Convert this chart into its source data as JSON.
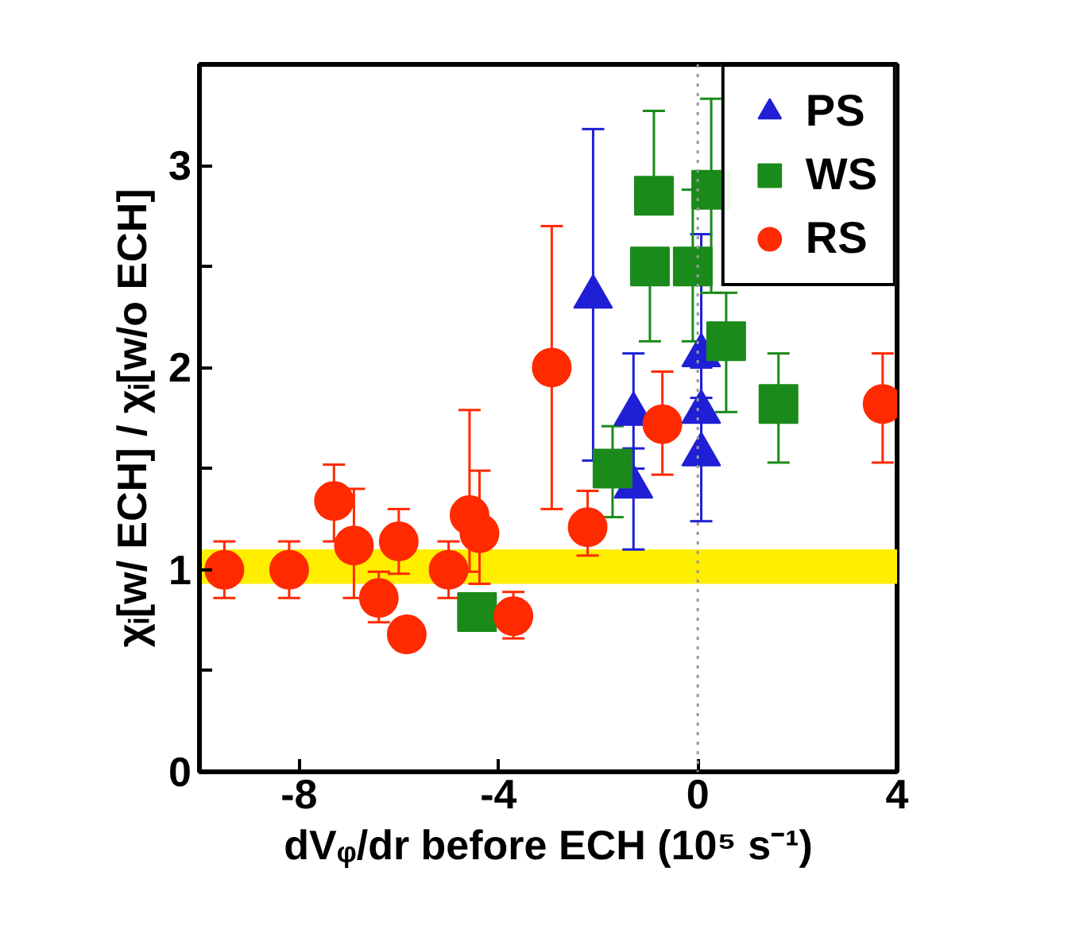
{
  "chart_data": {
    "type": "scatter",
    "xlabel": "dVᵩ/dr before ECH (10⁵ s⁻¹)",
    "ylabel": "χᵢ[w/ ECH] / χᵢ[w/o ECH]",
    "xlim": [
      -10,
      4
    ],
    "xticks": [
      -8,
      -4,
      0,
      4
    ],
    "ylim": [
      0,
      3.5
    ],
    "yticks": [
      0,
      {
        "value": 0.5,
        "label": null
      },
      1,
      {
        "value": 1.5,
        "label": null
      },
      2,
      {
        "value": 2.5,
        "label": null
      },
      3
    ],
    "grid": false,
    "legend": "top right",
    "series": [
      {
        "name": "PS",
        "color": "#1f1fd6",
        "marker": "triangle",
        "x": [
          -2.1,
          -1.29,
          -1.29,
          0.07,
          0.07,
          0.07
        ],
        "values": [
          2.35,
          1.77,
          1.41,
          2.06,
          1.78,
          1.57
        ],
        "errors": [
          [
            1.54,
            3.18
          ],
          [
            1.5,
            2.07
          ],
          [
            1.1,
            1.6
          ],
          [
            1.85,
            2.66
          ],
          [
            1.55,
            2.0
          ],
          [
            1.24,
            1.78
          ]
        ]
      },
      {
        "name": "WS",
        "color": "#1a8a1a",
        "marker": "square",
        "x": [
          -4.43,
          -1.71,
          -0.96,
          -0.1,
          -0.88,
          0.27,
          0.57,
          1.62
        ],
        "values": [
          0.79,
          1.5,
          2.5,
          2.5,
          2.85,
          2.88,
          2.13,
          1.82
        ],
        "errors": [
          null,
          [
            1.26,
            1.71
          ],
          [
            2.13,
            2.5
          ],
          [
            2.13,
            2.88
          ],
          [
            2.85,
            3.27
          ],
          [
            2.37,
            3.33
          ],
          [
            1.78,
            2.37
          ],
          [
            1.53,
            2.07
          ]
        ]
      },
      {
        "name": "RS",
        "color": "#ff2a00",
        "marker": "circle",
        "x": [
          -9.5,
          -8.2,
          -7.3,
          -6.9,
          -6.4,
          -6.0,
          -5.84,
          -5.0,
          -4.58,
          -4.38,
          -3.7,
          -2.93,
          -2.21,
          -0.71,
          3.71
        ],
        "values": [
          1.0,
          1.0,
          1.34,
          1.12,
          0.86,
          1.14,
          0.68,
          1.0,
          1.27,
          1.18,
          0.77,
          2.0,
          1.21,
          1.72,
          1.82
        ],
        "errors": [
          [
            0.86,
            1.14
          ],
          [
            0.86,
            1.14
          ],
          [
            1.14,
            1.52
          ],
          [
            0.86,
            1.4
          ],
          [
            0.74,
            0.99
          ],
          [
            0.98,
            1.3
          ],
          null,
          [
            0.86,
            1.14
          ],
          [
            0.99,
            1.79
          ],
          [
            0.93,
            1.49
          ],
          [
            0.66,
            0.89
          ],
          [
            1.3,
            2.7
          ],
          [
            1.07,
            1.39
          ],
          [
            1.47,
            1.98
          ],
          [
            1.53,
            2.07
          ]
        ]
      }
    ],
    "ref_lines": [
      {
        "axis": "x",
        "value": 0,
        "label": null,
        "color": "#999999",
        "line_style": "dotted"
      }
    ],
    "bands": [
      {
        "axis": "y",
        "from": 0.93,
        "to": 1.1,
        "label": null,
        "color": "#ffee00"
      }
    ]
  }
}
